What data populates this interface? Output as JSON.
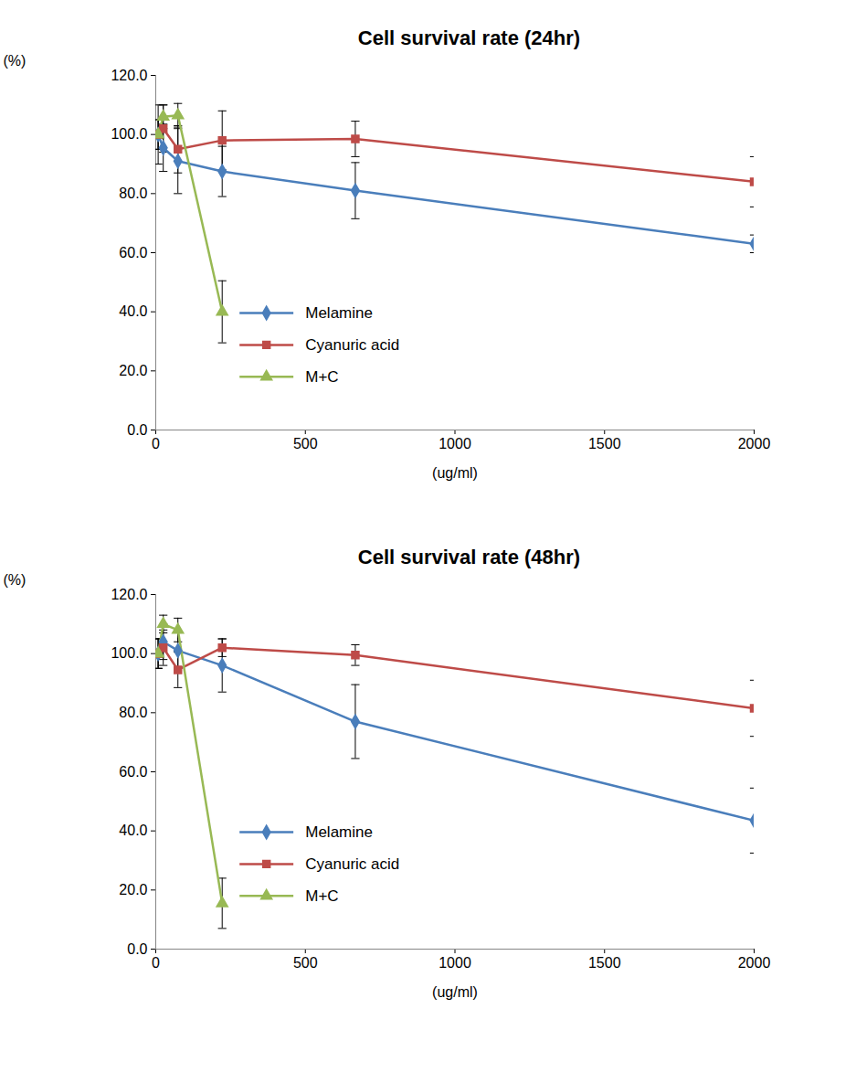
{
  "chart_data": [
    {
      "type": "line",
      "title": "Cell survival rate (24hr)",
      "x_label": "(ug/ml)",
      "y_label": "(%)",
      "x": [
        8,
        25,
        74,
        222,
        667,
        2000
      ],
      "xlim": [
        0,
        2000
      ],
      "xticks": [
        0,
        500,
        1000,
        1500,
        2000
      ],
      "ylim": [
        0,
        120
      ],
      "yticks": [
        {
          "value": 0,
          "label": "0.0"
        },
        {
          "value": 20,
          "label": "20.0"
        },
        {
          "value": 40,
          "label": "40.0"
        },
        {
          "value": 60,
          "label": "60.0"
        },
        {
          "value": 80,
          "label": "80.0"
        },
        {
          "value": 100,
          "label": "100.0"
        },
        {
          "value": 120,
          "label": "120.0"
        }
      ],
      "grid": false,
      "legend": "left",
      "series": [
        {
          "name": "Melamine",
          "color": "#4a7ebb",
          "marker": "diamond",
          "values": [
            100,
            95.5,
            91,
            87.5,
            81,
            63
          ],
          "errors": [
            5,
            8,
            11,
            8.5,
            9.5,
            3
          ]
        },
        {
          "name": "Cyanuric acid",
          "color": "#be4b48",
          "marker": "square",
          "values": [
            100,
            102,
            95,
            98,
            98.5,
            84
          ],
          "errors": [
            10,
            8,
            8,
            10,
            6,
            8.5
          ]
        },
        {
          "name": "M+C",
          "color": "#98b954",
          "marker": "triangle",
          "values": [
            100,
            106,
            106.5,
            40,
            null,
            null
          ],
          "errors": [
            5,
            4,
            4,
            10.5,
            null,
            null
          ]
        }
      ]
    },
    {
      "type": "line",
      "title": "Cell survival rate (48hr)",
      "x_label": "(ug/ml)",
      "y_label": "(%)",
      "x": [
        8,
        25,
        74,
        222,
        667,
        2000
      ],
      "xlim": [
        0,
        2000
      ],
      "xticks": [
        0,
        500,
        1000,
        1500,
        2000
      ],
      "ylim": [
        0,
        120
      ],
      "yticks": [
        {
          "value": 0,
          "label": "0.0"
        },
        {
          "value": 20,
          "label": "20.0"
        },
        {
          "value": 40,
          "label": "40.0"
        },
        {
          "value": 60,
          "label": "60.0"
        },
        {
          "value": 80,
          "label": "80.0"
        },
        {
          "value": 100,
          "label": "100.0"
        },
        {
          "value": 120,
          "label": "120.0"
        }
      ],
      "grid": false,
      "legend": "left",
      "series": [
        {
          "name": "Melamine",
          "color": "#4a7ebb",
          "marker": "diamond",
          "values": [
            100,
            104,
            101,
            96,
            77,
            43.5
          ],
          "errors": [
            5,
            6,
            6,
            9,
            12.5,
            11
          ]
        },
        {
          "name": "Cyanuric acid",
          "color": "#be4b48",
          "marker": "square",
          "values": [
            100,
            102,
            94.5,
            102,
            99.5,
            81.5
          ],
          "errors": [
            5,
            6,
            6,
            3,
            3.5,
            9.5
          ]
        },
        {
          "name": "M+C",
          "color": "#98b954",
          "marker": "triangle",
          "values": [
            100,
            110,
            108,
            15.5,
            null,
            null
          ],
          "errors": [
            5,
            3,
            4,
            8.5,
            null,
            null
          ]
        }
      ]
    }
  ]
}
